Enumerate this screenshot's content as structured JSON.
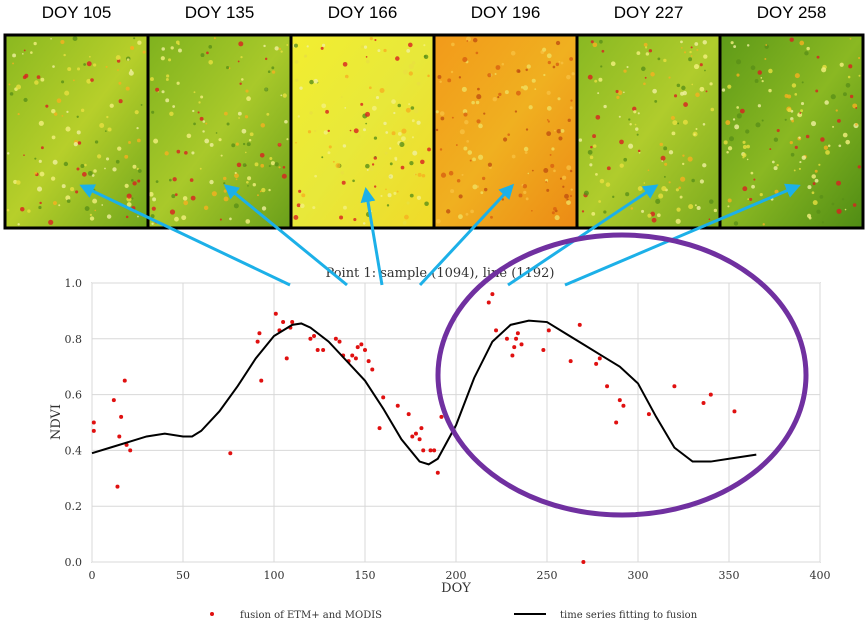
{
  "image_labels": [
    "DOY 105",
    "DOY 135",
    "DOY 166",
    "DOY 196",
    "DOY 227",
    "DOY 258"
  ],
  "chart_data": {
    "type": "scatter-line",
    "title": "Point 1: sample (1094), line (1192)",
    "x_label": "DOY",
    "y_label": "NDVI",
    "xlim": [
      0,
      400
    ],
    "xticks": [
      0,
      50,
      100,
      150,
      200,
      250,
      300,
      350,
      400
    ],
    "ylim": [
      0,
      1
    ],
    "yticks": [
      {
        "value": 0,
        "label": "0.0"
      },
      {
        "value": 0.2,
        "label": "0.2"
      },
      {
        "value": 0.4,
        "label": "0.4"
      },
      {
        "value": 0.6,
        "label": "0.6"
      },
      {
        "value": 0.8,
        "label": "0.8"
      },
      {
        "value": 1,
        "label": "1.0"
      }
    ],
    "grid": true,
    "series": [
      {
        "name": "fusion of ETM+ and MODIS",
        "kind": "scatter",
        "color": "#e01010",
        "x": [
          1,
          1,
          12,
          14,
          15,
          16,
          18,
          19,
          21,
          76,
          91,
          92,
          93,
          101,
          103,
          105,
          107,
          109,
          110,
          120,
          122,
          124,
          127,
          134,
          136,
          138,
          141,
          143,
          145,
          146,
          148,
          150,
          152,
          154,
          158,
          160,
          168,
          174,
          176,
          178,
          180,
          181,
          182,
          186,
          188,
          190,
          192,
          218,
          220,
          222,
          228,
          231,
          232,
          233,
          234,
          236,
          248,
          251,
          263,
          268,
          270,
          277,
          279,
          283,
          288,
          290,
          292,
          306,
          320,
          336,
          340,
          353
        ],
        "values": [
          0.5,
          0.47,
          0.58,
          0.27,
          0.45,
          0.52,
          0.65,
          0.42,
          0.4,
          0.39,
          0.79,
          0.82,
          0.65,
          0.89,
          0.83,
          0.86,
          0.73,
          0.84,
          0.86,
          0.8,
          0.81,
          0.76,
          0.76,
          0.8,
          0.79,
          0.74,
          0.72,
          0.74,
          0.73,
          0.77,
          0.78,
          0.76,
          0.72,
          0.69,
          0.48,
          0.59,
          0.56,
          0.53,
          0.45,
          0.46,
          0.44,
          0.48,
          0.4,
          0.4,
          0.4,
          0.32,
          0.52,
          0.93,
          0.96,
          0.83,
          0.8,
          0.74,
          0.77,
          0.8,
          0.82,
          0.78,
          0.76,
          0.83,
          0.72,
          0.85,
          0,
          0.71,
          0.73,
          0.63,
          0.5,
          0.58,
          0.56,
          0.53,
          0.63,
          0.57,
          0.6,
          0.54
        ]
      },
      {
        "name": "time series fitting to fusion",
        "kind": "line",
        "color": "#000000",
        "x": [
          0,
          10,
          20,
          30,
          40,
          50,
          55,
          60,
          70,
          80,
          90,
          100,
          110,
          115,
          120,
          130,
          140,
          150,
          160,
          170,
          180,
          185,
          190,
          200,
          210,
          220,
          230,
          240,
          250,
          260,
          270,
          280,
          290,
          300,
          310,
          320,
          330,
          340,
          350,
          365
        ],
        "values": [
          0.39,
          0.41,
          0.43,
          0.45,
          0.46,
          0.45,
          0.45,
          0.47,
          0.54,
          0.63,
          0.73,
          0.81,
          0.85,
          0.855,
          0.84,
          0.79,
          0.72,
          0.65,
          0.55,
          0.44,
          0.36,
          0.35,
          0.37,
          0.49,
          0.66,
          0.79,
          0.85,
          0.865,
          0.86,
          0.82,
          0.78,
          0.74,
          0.7,
          0.64,
          0.52,
          0.41,
          0.36,
          0.36,
          0.37,
          0.385
        ]
      }
    ]
  }
}
